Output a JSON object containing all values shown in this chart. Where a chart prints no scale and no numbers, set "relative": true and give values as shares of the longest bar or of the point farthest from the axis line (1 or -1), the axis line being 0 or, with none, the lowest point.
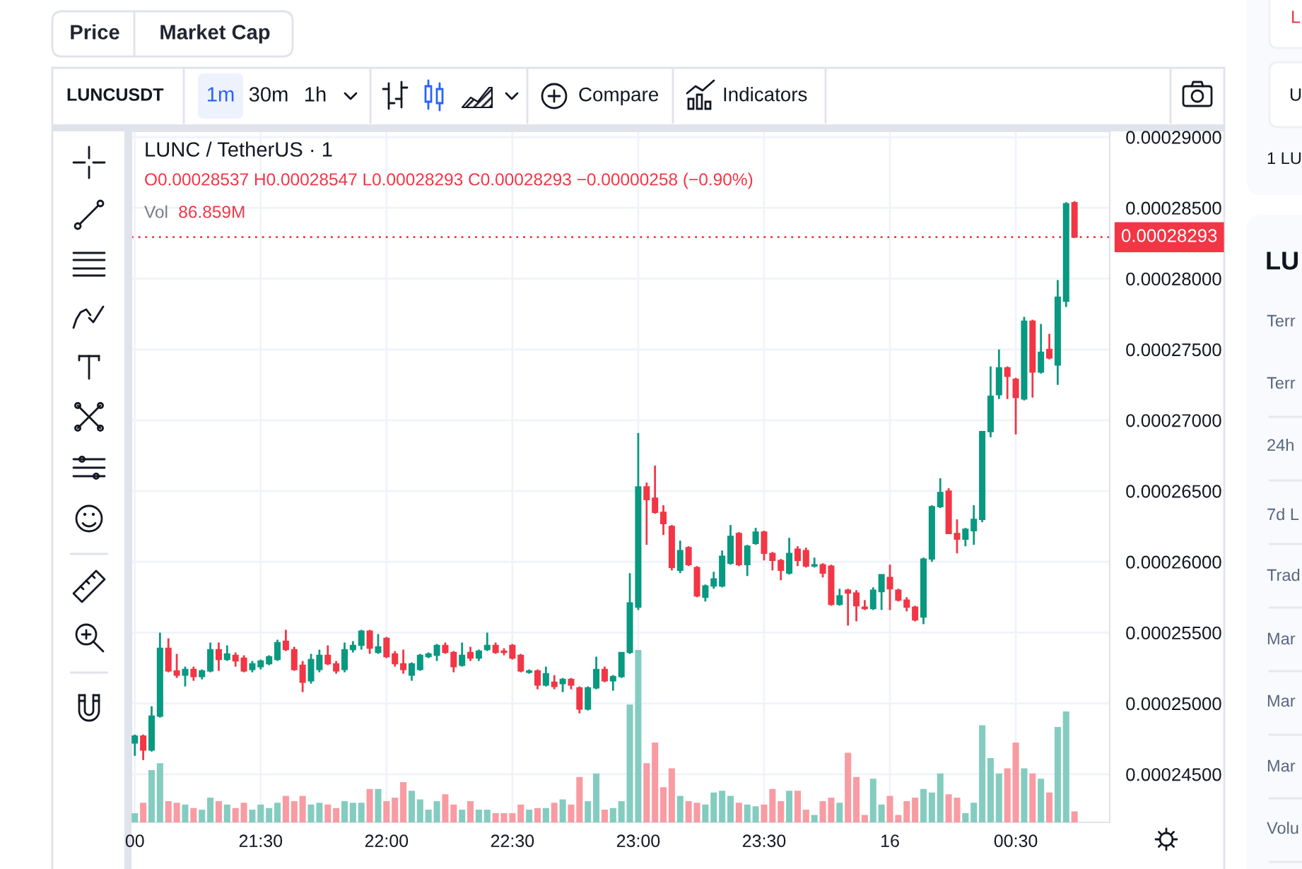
{
  "chart_data": [
    {
      "type": "candlestick",
      "title": "LUNC / TetherUS · 1",
      "subtitle": "O0.00028537 H0.00028547 L0.00028293 C0.00028293 −0.00000258 (−0.90%)",
      "annotations": [
        "Price",
        "Market Cap",
        "LUNCUSDT",
        "1m",
        "30m",
        "1h",
        "Compare",
        "Indicators",
        "L",
        "U",
        "1 LU",
        "LU",
        "Terr",
        "Terr",
        "24h",
        "7d L",
        "Trad",
        "Mar",
        "Mar",
        "Mar",
        "Volu"
      ],
      "categories": [
        "00",
        null,
        null,
        null,
        null,
        null,
        null,
        null,
        null,
        null,
        null,
        null,
        null,
        null,
        null,
        "21:30",
        null,
        null,
        null,
        null,
        null,
        null,
        null,
        null,
        null,
        null,
        null,
        null,
        null,
        null,
        "22:00",
        null,
        null,
        null,
        null,
        null,
        null,
        null,
        null,
        null,
        null,
        null,
        null,
        null,
        null,
        "22:30",
        null,
        null,
        null,
        null,
        null,
        null,
        null,
        null,
        null,
        null,
        null,
        null,
        null,
        null,
        "23:00",
        null,
        null,
        null,
        null,
        null,
        null,
        null,
        null,
        null,
        null,
        null,
        null,
        null,
        null,
        "23:30",
        null,
        null,
        null,
        null,
        null,
        null,
        null,
        null,
        null,
        null,
        null,
        null,
        null,
        null,
        "16",
        null,
        null,
        null,
        null,
        null,
        null,
        null,
        null,
        null,
        null,
        null,
        null,
        null,
        null,
        "00:30",
        null,
        null,
        null,
        null,
        null,
        null,
        null
      ],
      "ohlc": [
        [
          0.0002472,
          0.0002478,
          0.0002463,
          0.0002477
        ],
        [
          0.0002477,
          0.0002478,
          0.000246,
          0.0002467
        ],
        [
          0.0002467,
          0.0002498,
          0.0002466,
          0.0002491
        ],
        [
          0.0002491,
          0.000255,
          0.000249,
          0.0002539
        ],
        [
          0.0002539,
          0.0002546,
          0.0002522,
          0.0002523
        ],
        [
          0.0002523,
          0.0002535,
          0.0002518,
          0.000252
        ],
        [
          0.000252,
          0.0002526,
          0.0002512,
          0.0002524
        ],
        [
          0.0002524,
          0.0002526,
          0.0002516,
          0.0002519
        ],
        [
          0.0002519,
          0.0002524,
          0.0002517,
          0.0002523
        ],
        [
          0.0002523,
          0.0002543,
          0.0002522,
          0.0002538
        ],
        [
          0.0002538,
          0.0002543,
          0.0002523,
          0.0002531
        ],
        [
          0.0002531,
          0.0002541,
          0.000253,
          0.0002535
        ],
        [
          0.0002534,
          0.0002536,
          0.0002526,
          0.000253
        ],
        [
          0.0002532,
          0.0002534,
          0.0002522,
          0.0002523
        ],
        [
          0.0002524,
          0.000253,
          0.0002522,
          0.0002528
        ],
        [
          0.0002526,
          0.0002531,
          0.0002524,
          0.000253
        ],
        [
          0.0002528,
          0.0002534,
          0.0002527,
          0.0002533
        ],
        [
          0.0002531,
          0.0002545,
          0.000253,
          0.0002543
        ],
        [
          0.0002544,
          0.0002552,
          0.0002537,
          0.0002538
        ],
        [
          0.0002538,
          0.000254,
          0.0002523,
          0.0002524
        ],
        [
          0.0002527,
          0.000253,
          0.0002508,
          0.0002515
        ],
        [
          0.0002516,
          0.0002535,
          0.0002514,
          0.0002531
        ],
        [
          0.0002524,
          0.0002538,
          0.0002522,
          0.0002534
        ],
        [
          0.0002534,
          0.0002541,
          0.0002527,
          0.0002528
        ],
        [
          0.0002528,
          0.000253,
          0.0002521,
          0.0002523
        ],
        [
          0.0002524,
          0.0002543,
          0.0002522,
          0.0002538
        ],
        [
          0.0002538,
          0.0002544,
          0.0002536,
          0.0002541
        ],
        [
          0.0002541,
          0.0002552,
          0.0002538,
          0.0002551
        ],
        [
          0.0002551,
          0.0002552,
          0.0002535,
          0.0002539
        ],
        [
          0.0002536,
          0.0002549,
          0.0002535,
          0.000254
        ],
        [
          0.0002546,
          0.0002547,
          0.0002532,
          0.0002533
        ],
        [
          0.0002535,
          0.0002537,
          0.0002526,
          0.0002528
        ],
        [
          0.0002528,
          0.0002538,
          0.0002521,
          0.0002524
        ],
        [
          0.000252,
          0.0002529,
          0.0002516,
          0.0002528
        ],
        [
          0.0002524,
          0.0002535,
          0.0002523,
          0.0002534
        ],
        [
          0.0002533,
          0.0002536,
          0.0002532,
          0.0002535
        ],
        [
          0.0002534,
          0.0002542,
          0.000253,
          0.0002541
        ],
        [
          0.0002541,
          0.0002543,
          0.0002535,
          0.0002536
        ],
        [
          0.0002536,
          0.0002537,
          0.0002522,
          0.0002526
        ],
        [
          0.0002527,
          0.0002543,
          0.0002526,
          0.0002534
        ],
        [
          0.0002536,
          0.000254,
          0.000253,
          0.0002532
        ],
        [
          0.0002532,
          0.0002538,
          0.000253,
          0.0002537
        ],
        [
          0.0002538,
          0.000255,
          0.0002537,
          0.0002541
        ],
        [
          0.0002541,
          0.0002543,
          0.0002535,
          0.0002536
        ],
        [
          0.0002537,
          0.0002539,
          0.0002534,
          0.0002536
        ],
        [
          0.0002541,
          0.0002542,
          0.0002531,
          0.0002532
        ],
        [
          0.0002534,
          0.0002535,
          0.0002522,
          0.0002523
        ],
        [
          0.0002522,
          0.0002524,
          0.0002521,
          0.0002523
        ],
        [
          0.0002523,
          0.0002524,
          0.000251,
          0.0002513
        ],
        [
          0.0002513,
          0.0002526,
          0.0002512,
          0.0002521
        ],
        [
          0.0002515,
          0.000252,
          0.000251,
          0.0002512
        ],
        [
          0.0002514,
          0.0002518,
          0.0002508,
          0.0002517
        ],
        [
          0.0002517,
          0.0002518,
          0.000251,
          0.0002513
        ],
        [
          0.0002511,
          0.0002512,
          0.0002493,
          0.0002496
        ],
        [
          0.0002496,
          0.0002512,
          0.0002495,
          0.0002511
        ],
        [
          0.0002511,
          0.0002533,
          0.000251,
          0.0002524
        ],
        [
          0.0002524,
          0.0002526,
          0.0002515,
          0.0002516
        ],
        [
          0.0002516,
          0.000252,
          0.0002509,
          0.0002519
        ],
        [
          0.0002519,
          0.0002536,
          0.0002518,
          0.0002536
        ],
        [
          0.0002536,
          0.0002592,
          0.0002535,
          0.0002571
        ],
        [
          0.0002568,
          0.0002691,
          0.0002566,
          0.0002653
        ],
        [
          0.0002653,
          0.0002656,
          0.0002612,
          0.0002644
        ],
        [
          0.0002645,
          0.0002668,
          0.0002634,
          0.0002635
        ],
        [
          0.0002635,
          0.000264,
          0.0002619,
          0.0002627
        ],
        [
          0.0002625,
          0.0002626,
          0.0002594,
          0.0002596
        ],
        [
          0.0002594,
          0.0002615,
          0.0002592,
          0.0002608
        ],
        [
          0.000261,
          0.0002611,
          0.0002597,
          0.0002598
        ],
        [
          0.0002596,
          0.0002597,
          0.0002575,
          0.0002576
        ],
        [
          0.0002575,
          0.0002584,
          0.0002572,
          0.0002583
        ],
        [
          0.0002583,
          0.0002593,
          0.0002581,
          0.0002588
        ],
        [
          0.0002583,
          0.0002608,
          0.0002582,
          0.0002604
        ],
        [
          0.0002599,
          0.0002626,
          0.0002598,
          0.0002618
        ],
        [
          0.000262,
          0.0002621,
          0.0002597,
          0.0002598
        ],
        [
          0.0002598,
          0.0002612,
          0.000259,
          0.0002611
        ],
        [
          0.0002613,
          0.0002624,
          0.0002612,
          0.0002621
        ],
        [
          0.0002621,
          0.0002622,
          0.0002601,
          0.0002606
        ],
        [
          0.0002606,
          0.0002607,
          0.0002594,
          0.0002601
        ],
        [
          0.0002601,
          0.0002602,
          0.0002587,
          0.0002594
        ],
        [
          0.0002592,
          0.0002617,
          0.0002591,
          0.0002606
        ],
        [
          0.0002609,
          0.0002611,
          0.0002597,
          0.0002601
        ],
        [
          0.0002608,
          0.000261,
          0.0002596,
          0.0002597
        ],
        [
          0.0002597,
          0.0002603,
          0.0002596,
          0.0002598
        ],
        [
          0.0002598,
          0.0002599,
          0.0002589,
          0.0002592
        ],
        [
          0.0002597,
          0.0002598,
          0.0002569,
          0.000257
        ],
        [
          0.000257,
          0.0002581,
          0.0002569,
          0.0002576
        ],
        [
          0.000258,
          0.0002581,
          0.0002555,
          0.0002578
        ],
        [
          0.0002578,
          0.000258,
          0.0002558,
          0.0002569
        ],
        [
          0.0002568,
          0.0002573,
          0.0002566,
          0.0002567
        ],
        [
          0.0002567,
          0.0002582,
          0.0002566,
          0.000258
        ],
        [
          0.0002579,
          0.0002591,
          0.0002566,
          0.0002591
        ],
        [
          0.0002589,
          0.0002598,
          0.0002566,
          0.0002581
        ],
        [
          0.000258,
          0.0002581,
          0.0002572,
          0.0002573
        ],
        [
          0.0002573,
          0.0002575,
          0.0002565,
          0.0002568
        ],
        [
          0.0002568,
          0.0002569,
          0.0002558,
          0.0002559
        ],
        [
          0.0002561,
          0.0002603,
          0.0002556,
          0.0002602
        ],
        [
          0.0002602,
          0.000264,
          0.00026,
          0.0002639
        ],
        [
          0.0002639,
          0.0002659,
          0.0002638,
          0.0002649
        ],
        [
          0.000265,
          0.0002652,
          0.000262,
          0.000262
        ],
        [
          0.000262,
          0.000263,
          0.0002606,
          0.0002616
        ],
        [
          0.0002616,
          0.0002624,
          0.0002611,
          0.0002623
        ],
        [
          0.0002622,
          0.000264,
          0.0002612,
          0.000263
        ],
        [
          0.000263,
          0.0002692,
          0.0002628,
          0.0002692
        ],
        [
          0.0002692,
          0.0002738,
          0.0002688,
          0.0002717
        ],
        [
          0.0002718,
          0.000275,
          0.0002715,
          0.0002737
        ],
        [
          0.0002737,
          0.0002738,
          0.0002715,
          0.0002731
        ],
        [
          0.0002729,
          0.000273,
          0.000269,
          0.0002716
        ],
        [
          0.0002715,
          0.0002773,
          0.0002714,
          0.000277
        ],
        [
          0.000277,
          0.0002771,
          0.0002716,
          0.0002734
        ],
        [
          0.0002734,
          0.0002768,
          0.0002733,
          0.0002748
        ],
        [
          0.000275,
          0.0002761,
          0.0002743,
          0.0002744
        ],
        [
          0.0002739,
          0.0002799,
          0.0002725,
          0.0002787
        ],
        [
          0.0002784,
          0.0002854,
          0.000278,
          0.0002853
        ],
        [
          0.00028537,
          0.00028547,
          0.00028293,
          0.00028293
        ]
      ],
      "colors": [
        "#089981",
        "#f23645",
        "#089981",
        "#089981",
        "#f23645",
        "#f23645",
        "#089981",
        "#f23645",
        "#089981",
        "#089981",
        "#f23645",
        "#089981",
        "#f23645",
        "#f23645",
        "#089981",
        "#089981",
        "#089981",
        "#089981",
        "#f23645",
        "#f23645",
        "#f23645",
        "#089981",
        "#089981",
        "#f23645",
        "#f23645",
        "#089981",
        "#089981",
        "#089981",
        "#f23645",
        "#089981",
        "#f23645",
        "#f23645",
        "#f23645",
        "#089981",
        "#089981",
        "#089981",
        "#089981",
        "#f23645",
        "#f23645",
        "#089981",
        "#f23645",
        "#089981",
        "#089981",
        "#f23645",
        "#f23645",
        "#f23645",
        "#f23645",
        "#089981",
        "#f23645",
        "#089981",
        "#f23645",
        "#089981",
        "#f23645",
        "#f23645",
        "#089981",
        "#089981",
        "#f23645",
        "#089981",
        "#089981",
        "#089981",
        "#089981",
        "#f23645",
        "#f23645",
        "#f23645",
        "#f23645",
        "#089981",
        "#f23645",
        "#f23645",
        "#089981",
        "#089981",
        "#089981",
        "#089981",
        "#f23645",
        "#089981",
        "#089981",
        "#f23645",
        "#f23645",
        "#f23645",
        "#089981",
        "#f23645",
        "#f23645",
        "#089981",
        "#f23645",
        "#f23645",
        "#089981",
        "#f23645",
        "#f23645",
        "#f23645",
        "#089981",
        "#089981",
        "#f23645",
        "#f23645",
        "#f23645",
        "#f23645",
        "#089981",
        "#089981",
        "#089981",
        "#f23645",
        "#f23645",
        "#089981",
        "#089981",
        "#089981",
        "#089981",
        "#089981",
        "#f23645",
        "#f23645",
        "#089981",
        "#f23645",
        "#089981",
        "#f23645",
        "#089981",
        "#089981",
        "#f23645"
      ],
      "ylim": [
        0.0002416,
        0.0002904
      ],
      "yticks": [
        {
          "value": 0.000245,
          "label": "0.00024500"
        },
        {
          "value": 0.00025,
          "label": "0.00025000"
        },
        {
          "value": 0.000255,
          "label": "0.00025500"
        },
        {
          "value": 0.00026,
          "label": "0.00026000"
        },
        {
          "value": 0.000265,
          "label": "0.00026500"
        },
        {
          "value": 0.00027,
          "label": "0.00027000"
        },
        {
          "value": 0.000275,
          "label": "0.00027500"
        },
        {
          "value": 0.00028,
          "label": "0.00028000"
        },
        {
          "value": 0.000285,
          "label": "0.00028500"
        },
        {
          "value": 0.00029,
          "label": "0.00029000"
        }
      ],
      "grid": true,
      "ref_lines": [
        {
          "axis": "y",
          "value": 0.00028293,
          "label": "0.00028293",
          "color": "#f23645",
          "line_style": "dotted"
        }
      ]
    },
    {
      "type": "bar",
      "relative": true,
      "tick_labels": false,
      "annotations": [
        "Vol",
        "86.859M"
      ],
      "categories": [
        null,
        null,
        null,
        null,
        null,
        null,
        null,
        null,
        null,
        null,
        null,
        null,
        null,
        null,
        null,
        null,
        null,
        null,
        null,
        null,
        null,
        null,
        null,
        null,
        null,
        null,
        null,
        null,
        null,
        null,
        null,
        null,
        null,
        null,
        null,
        null,
        null,
        null,
        null,
        null,
        null,
        null,
        null,
        null,
        null,
        null,
        null,
        null,
        null,
        null,
        null,
        null,
        null,
        null,
        null,
        null,
        null,
        null,
        null,
        null,
        null,
        null,
        null,
        null,
        null,
        null,
        null,
        null,
        null,
        null,
        null,
        null,
        null,
        null,
        null,
        null,
        null,
        null,
        null,
        null,
        null,
        null,
        null,
        null,
        null,
        null,
        null,
        null,
        null,
        null,
        null,
        null,
        null,
        null,
        null,
        null,
        null,
        null,
        null,
        null,
        null,
        null,
        null,
        null,
        null,
        null,
        null,
        null,
        null,
        null,
        null,
        null,
        null
      ],
      "values": [
        0.05,
        0.11,
        0.3,
        0.34,
        0.12,
        0.11,
        0.1,
        0.08,
        0.07,
        0.14,
        0.12,
        0.1,
        0.08,
        0.11,
        0.07,
        0.1,
        0.08,
        0.11,
        0.15,
        0.12,
        0.15,
        0.1,
        0.11,
        0.1,
        0.08,
        0.12,
        0.11,
        0.11,
        0.19,
        0.19,
        0.12,
        0.14,
        0.23,
        0.18,
        0.13,
        0.07,
        0.12,
        0.16,
        0.1,
        0.07,
        0.12,
        0.07,
        0.07,
        0.05,
        0.05,
        0.05,
        0.1,
        0.07,
        0.08,
        0.08,
        0.11,
        0.13,
        0.1,
        0.26,
        0.12,
        0.28,
        0.07,
        0.08,
        0.12,
        0.68,
        1,
        0.34,
        0.46,
        0.2,
        0.31,
        0.15,
        0.12,
        0.11,
        0.1,
        0.17,
        0.18,
        0.15,
        0.11,
        0.1,
        0.09,
        0.1,
        0.19,
        0.12,
        0.18,
        0.18,
        0.07,
        0.04,
        0.12,
        0.14,
        0.11,
        0.4,
        0.26,
        0.04,
        0.25,
        0.1,
        0.15,
        0.04,
        0.12,
        0.14,
        0.19,
        0.17,
        0.28,
        0.16,
        0.14,
        0.05,
        0.11,
        0.56,
        0.37,
        0.28,
        0.31,
        0.46,
        0.31,
        0.28,
        0.25,
        0.17,
        0.55,
        0.64,
        0.06
      ],
      "colors": [
        "#84ccc0",
        "#f99ba2",
        "#84ccc0",
        "#84ccc0",
        "#f99ba2",
        "#f99ba2",
        "#84ccc0",
        "#f99ba2",
        "#84ccc0",
        "#84ccc0",
        "#f99ba2",
        "#84ccc0",
        "#f99ba2",
        "#f99ba2",
        "#84ccc0",
        "#84ccc0",
        "#84ccc0",
        "#84ccc0",
        "#f99ba2",
        "#f99ba2",
        "#f99ba2",
        "#84ccc0",
        "#84ccc0",
        "#f99ba2",
        "#f99ba2",
        "#84ccc0",
        "#84ccc0",
        "#84ccc0",
        "#f99ba2",
        "#84ccc0",
        "#f99ba2",
        "#f99ba2",
        "#f99ba2",
        "#84ccc0",
        "#84ccc0",
        "#84ccc0",
        "#84ccc0",
        "#f99ba2",
        "#f99ba2",
        "#84ccc0",
        "#f99ba2",
        "#84ccc0",
        "#84ccc0",
        "#f99ba2",
        "#f99ba2",
        "#f99ba2",
        "#f99ba2",
        "#84ccc0",
        "#f99ba2",
        "#84ccc0",
        "#f99ba2",
        "#84ccc0",
        "#f99ba2",
        "#f99ba2",
        "#84ccc0",
        "#84ccc0",
        "#f99ba2",
        "#84ccc0",
        "#84ccc0",
        "#84ccc0",
        "#84ccc0",
        "#f99ba2",
        "#f99ba2",
        "#f99ba2",
        "#f99ba2",
        "#84ccc0",
        "#f99ba2",
        "#f99ba2",
        "#84ccc0",
        "#84ccc0",
        "#84ccc0",
        "#84ccc0",
        "#f99ba2",
        "#84ccc0",
        "#84ccc0",
        "#f99ba2",
        "#f99ba2",
        "#f99ba2",
        "#84ccc0",
        "#f99ba2",
        "#f99ba2",
        "#84ccc0",
        "#f99ba2",
        "#f99ba2",
        "#84ccc0",
        "#f99ba2",
        "#f99ba2",
        "#f99ba2",
        "#84ccc0",
        "#84ccc0",
        "#f99ba2",
        "#f99ba2",
        "#f99ba2",
        "#f99ba2",
        "#84ccc0",
        "#84ccc0",
        "#84ccc0",
        "#f99ba2",
        "#f99ba2",
        "#84ccc0",
        "#84ccc0",
        "#84ccc0",
        "#84ccc0",
        "#84ccc0",
        "#f99ba2",
        "#f99ba2",
        "#84ccc0",
        "#f99ba2",
        "#84ccc0",
        "#f99ba2",
        "#84ccc0",
        "#84ccc0",
        "#f99ba2"
      ]
    }
  ]
}
